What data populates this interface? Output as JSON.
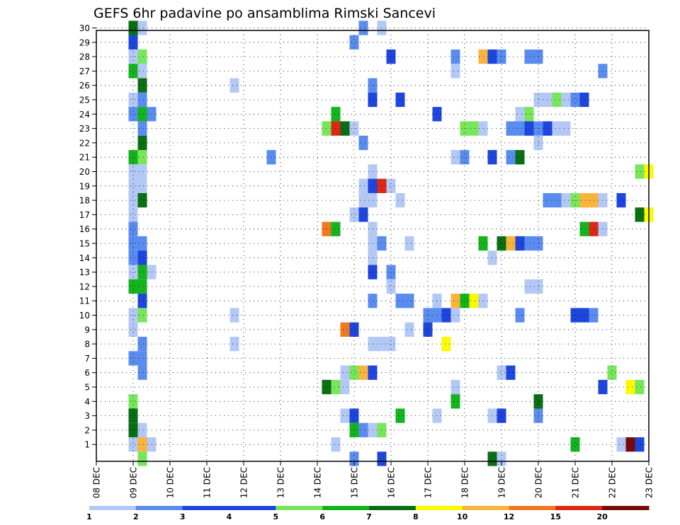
{
  "chart_data": {
    "type": "heatmap",
    "title": "GEFS 6hr padavine po ansamblima Rimski Sancevi",
    "x_ticks": [
      "08 DEC",
      "09 DEC",
      "10 DEC",
      "11 DEC",
      "12 DEC",
      "13 DEC",
      "14 DEC",
      "15 DEC",
      "16 DEC",
      "17 DEC",
      "18 DEC",
      "19 DEC",
      "20 DEC",
      "21 DEC",
      "22 DEC",
      "23 DEC"
    ],
    "y_ticks": [
      "1",
      "2",
      "3",
      "4",
      "5",
      "6",
      "7",
      "8",
      "9",
      "10",
      "11",
      "12",
      "13",
      "14",
      "15",
      "16",
      "17",
      "18",
      "19",
      "20",
      "21",
      "22",
      "23",
      "24",
      "25",
      "26",
      "27",
      "28",
      "29",
      "30"
    ],
    "x_range": [
      "08 DEC 00Z",
      "23 DEC 00Z"
    ],
    "time_step_hours": 6,
    "y_range": [
      0,
      30
    ],
    "grid": true,
    "legend": {
      "position": "bottom",
      "labels": [
        "1",
        "2",
        "3",
        "4",
        "5",
        "6",
        "7",
        "8",
        "10",
        "12",
        "15",
        "20"
      ],
      "colors": [
        "#b4c8f5",
        "#5a8cf0",
        "#1e46dc",
        "#1e46dc",
        "#78e65a",
        "#14b41e",
        "#0a6e14",
        "#fafa00",
        "#fab43c",
        "#f0781e",
        "#dc2814",
        "#780a0a"
      ],
      "category_colors": {
        "1": "#b4c8f5",
        "2": "#5a8cf0",
        "3": "#1e46dc",
        "5": "#78e65a",
        "6": "#14b41e",
        "7": "#0a6e14",
        "8": "#fafa00",
        "10": "#fab43c",
        "12": "#f0781e",
        "15": "#dc2814",
        "20": "#780a0a"
      }
    },
    "cells": [
      [
        "09 DEC 00Z",
        30,
        "7"
      ],
      [
        "09 DEC 06Z",
        30,
        "1"
      ],
      [
        "15 DEC 18Z",
        30,
        "1"
      ],
      [
        "15 DEC 06Z",
        30,
        "2"
      ],
      [
        "09 DEC 00Z",
        29,
        "3"
      ],
      [
        "15 DEC 00Z",
        29,
        "2"
      ],
      [
        "09 DEC 00Z",
        28,
        "1"
      ],
      [
        "09 DEC 06Z",
        28,
        "5"
      ],
      [
        "16 DEC 00Z",
        28,
        "3"
      ],
      [
        "17 DEC 18Z",
        28,
        "2"
      ],
      [
        "18 DEC 12Z",
        28,
        "10"
      ],
      [
        "18 DEC 18Z",
        28,
        "3"
      ],
      [
        "19 DEC 00Z",
        28,
        "2"
      ],
      [
        "19 DEC 18Z",
        28,
        "2"
      ],
      [
        "20 DEC 00Z",
        28,
        "2"
      ],
      [
        "09 DEC 00Z",
        27,
        "6"
      ],
      [
        "09 DEC 06Z",
        27,
        "1"
      ],
      [
        "17 DEC 18Z",
        27,
        "1"
      ],
      [
        "21 DEC 18Z",
        27,
        "2"
      ],
      [
        "09 DEC 06Z",
        26,
        "7"
      ],
      [
        "11 DEC 18Z",
        26,
        "1"
      ],
      [
        "15 DEC 12Z",
        26,
        "2"
      ],
      [
        "09 DEC 00Z",
        25,
        "1"
      ],
      [
        "09 DEC 06Z",
        25,
        "2"
      ],
      [
        "15 DEC 12Z",
        25,
        "3"
      ],
      [
        "16 DEC 06Z",
        25,
        "3"
      ],
      [
        "20 DEC 00Z",
        25,
        "1"
      ],
      [
        "20 DEC 06Z",
        25,
        "1"
      ],
      [
        "20 DEC 12Z",
        25,
        "5"
      ],
      [
        "20 DEC 18Z",
        25,
        "1"
      ],
      [
        "21 DEC 00Z",
        25,
        "2"
      ],
      [
        "21 DEC 06Z",
        25,
        "3"
      ],
      [
        "09 DEC 00Z",
        24,
        "2"
      ],
      [
        "09 DEC 06Z",
        24,
        "6"
      ],
      [
        "09 DEC 12Z",
        24,
        "2"
      ],
      [
        "14 DEC 12Z",
        24,
        "6"
      ],
      [
        "17 DEC 06Z",
        24,
        "3"
      ],
      [
        "19 DEC 12Z",
        24,
        "1"
      ],
      [
        "19 DEC 18Z",
        24,
        "5"
      ],
      [
        "09 DEC 06Z",
        23,
        "2"
      ],
      [
        "14 DEC 06Z",
        23,
        "5"
      ],
      [
        "14 DEC 12Z",
        23,
        "15"
      ],
      [
        "14 DEC 18Z",
        23,
        "7"
      ],
      [
        "15 DEC 00Z",
        23,
        "1"
      ],
      [
        "18 DEC 00Z",
        23,
        "5"
      ],
      [
        "18 DEC 06Z",
        23,
        "5"
      ],
      [
        "18 DEC 12Z",
        23,
        "1"
      ],
      [
        "19 DEC 06Z",
        23,
        "2"
      ],
      [
        "19 DEC 12Z",
        23,
        "2"
      ],
      [
        "19 DEC 18Z",
        23,
        "3"
      ],
      [
        "20 DEC 00Z",
        23,
        "2"
      ],
      [
        "20 DEC 06Z",
        23,
        "3"
      ],
      [
        "20 DEC 12Z",
        23,
        "1"
      ],
      [
        "20 DEC 18Z",
        23,
        "1"
      ],
      [
        "09 DEC 06Z",
        22,
        "7"
      ],
      [
        "15 DEC 06Z",
        22,
        "2"
      ],
      [
        "20 DEC 00Z",
        22,
        "1"
      ],
      [
        "09 DEC 00Z",
        21,
        "6"
      ],
      [
        "09 DEC 06Z",
        21,
        "5"
      ],
      [
        "12 DEC 18Z",
        21,
        "2"
      ],
      [
        "17 DEC 18Z",
        21,
        "1"
      ],
      [
        "18 DEC 00Z",
        21,
        "2"
      ],
      [
        "18 DEC 18Z",
        21,
        "3"
      ],
      [
        "19 DEC 06Z",
        21,
        "2"
      ],
      [
        "19 DEC 12Z",
        21,
        "7"
      ],
      [
        "09 DEC 00Z",
        20,
        "1"
      ],
      [
        "09 DEC 06Z",
        20,
        "1"
      ],
      [
        "15 DEC 12Z",
        20,
        "1"
      ],
      [
        "22 DEC 18Z",
        20,
        "5"
      ],
      [
        "23 DEC 00Z",
        20,
        "8"
      ],
      [
        "09 DEC 00Z",
        19,
        "1"
      ],
      [
        "09 DEC 06Z",
        19,
        "1"
      ],
      [
        "15 DEC 06Z",
        19,
        "1"
      ],
      [
        "15 DEC 12Z",
        19,
        "3"
      ],
      [
        "15 DEC 18Z",
        19,
        "15"
      ],
      [
        "16 DEC 00Z",
        19,
        "1"
      ],
      [
        "09 DEC 00Z",
        18,
        "1"
      ],
      [
        "09 DEC 06Z",
        18,
        "7"
      ],
      [
        "15 DEC 06Z",
        18,
        "1"
      ],
      [
        "15 DEC 12Z",
        18,
        "1"
      ],
      [
        "16 DEC 06Z",
        18,
        "1"
      ],
      [
        "20 DEC 06Z",
        18,
        "2"
      ],
      [
        "20 DEC 12Z",
        18,
        "2"
      ],
      [
        "20 DEC 18Z",
        18,
        "1"
      ],
      [
        "21 DEC 00Z",
        18,
        "5"
      ],
      [
        "21 DEC 06Z",
        18,
        "10"
      ],
      [
        "21 DEC 12Z",
        18,
        "10"
      ],
      [
        "21 DEC 18Z",
        18,
        "1"
      ],
      [
        "22 DEC 06Z",
        18,
        "3"
      ],
      [
        "09 DEC 00Z",
        17,
        "1"
      ],
      [
        "15 DEC 00Z",
        17,
        "1"
      ],
      [
        "15 DEC 06Z",
        17,
        "3"
      ],
      [
        "22 DEC 18Z",
        17,
        "7"
      ],
      [
        "23 DEC 00Z",
        17,
        "8"
      ],
      [
        "09 DEC 00Z",
        16,
        "2"
      ],
      [
        "14 DEC 06Z",
        16,
        "12"
      ],
      [
        "14 DEC 12Z",
        16,
        "6"
      ],
      [
        "15 DEC 12Z",
        16,
        "1"
      ],
      [
        "21 DEC 06Z",
        16,
        "6"
      ],
      [
        "21 DEC 12Z",
        16,
        "15"
      ],
      [
        "21 DEC 18Z",
        16,
        "1"
      ],
      [
        "09 DEC 00Z",
        15,
        "2"
      ],
      [
        "09 DEC 06Z",
        15,
        "2"
      ],
      [
        "15 DEC 12Z",
        15,
        "1"
      ],
      [
        "15 DEC 18Z",
        15,
        "2"
      ],
      [
        "16 DEC 12Z",
        15,
        "1"
      ],
      [
        "18 DEC 12Z",
        15,
        "6"
      ],
      [
        "19 DEC 00Z",
        15,
        "7"
      ],
      [
        "19 DEC 06Z",
        15,
        "10"
      ],
      [
        "19 DEC 12Z",
        15,
        "3"
      ],
      [
        "19 DEC 18Z",
        15,
        "2"
      ],
      [
        "20 DEC 00Z",
        15,
        "2"
      ],
      [
        "09 DEC 00Z",
        14,
        "2"
      ],
      [
        "09 DEC 06Z",
        14,
        "3"
      ],
      [
        "15 DEC 12Z",
        14,
        "1"
      ],
      [
        "18 DEC 18Z",
        14,
        "1"
      ],
      [
        "09 DEC 00Z",
        13,
        "1"
      ],
      [
        "09 DEC 06Z",
        13,
        "6"
      ],
      [
        "09 DEC 12Z",
        13,
        "1"
      ],
      [
        "15 DEC 12Z",
        13,
        "3"
      ],
      [
        "16 DEC 00Z",
        13,
        "2"
      ],
      [
        "09 DEC 00Z",
        12,
        "6"
      ],
      [
        "09 DEC 06Z",
        12,
        "6"
      ],
      [
        "16 DEC 00Z",
        12,
        "1"
      ],
      [
        "19 DEC 18Z",
        12,
        "1"
      ],
      [
        "20 DEC 00Z",
        12,
        "1"
      ],
      [
        "09 DEC 06Z",
        11,
        "3"
      ],
      [
        "15 DEC 12Z",
        11,
        "2"
      ],
      [
        "16 DEC 06Z",
        11,
        "2"
      ],
      [
        "16 DEC 12Z",
        11,
        "2"
      ],
      [
        "17 DEC 06Z",
        11,
        "1"
      ],
      [
        "17 DEC 18Z",
        11,
        "10"
      ],
      [
        "18 DEC 00Z",
        11,
        "6"
      ],
      [
        "18 DEC 06Z",
        11,
        "8"
      ],
      [
        "18 DEC 12Z",
        11,
        "1"
      ],
      [
        "09 DEC 00Z",
        10,
        "1"
      ],
      [
        "09 DEC 06Z",
        10,
        "5"
      ],
      [
        "11 DEC 18Z",
        10,
        "1"
      ],
      [
        "17 DEC 00Z",
        10,
        "2"
      ],
      [
        "17 DEC 06Z",
        10,
        "2"
      ],
      [
        "17 DEC 12Z",
        10,
        "3"
      ],
      [
        "17 DEC 18Z",
        10,
        "1"
      ],
      [
        "19 DEC 12Z",
        10,
        "2"
      ],
      [
        "21 DEC 00Z",
        10,
        "3"
      ],
      [
        "21 DEC 06Z",
        10,
        "3"
      ],
      [
        "21 DEC 12Z",
        10,
        "2"
      ],
      [
        "09 DEC 00Z",
        9,
        "1"
      ],
      [
        "14 DEC 18Z",
        9,
        "12"
      ],
      [
        "15 DEC 00Z",
        9,
        "3"
      ],
      [
        "16 DEC 12Z",
        9,
        "1"
      ],
      [
        "17 DEC 00Z",
        9,
        "3"
      ],
      [
        "09 DEC 06Z",
        8,
        "2"
      ],
      [
        "11 DEC 18Z",
        8,
        "1"
      ],
      [
        "15 DEC 12Z",
        8,
        "1"
      ],
      [
        "15 DEC 18Z",
        8,
        "1"
      ],
      [
        "16 DEC 00Z",
        8,
        "1"
      ],
      [
        "17 DEC 12Z",
        8,
        "8"
      ],
      [
        "09 DEC 00Z",
        7,
        "2"
      ],
      [
        "09 DEC 06Z",
        7,
        "2"
      ],
      [
        "09 DEC 06Z",
        6,
        "2"
      ],
      [
        "14 DEC 18Z",
        6,
        "1"
      ],
      [
        "15 DEC 00Z",
        6,
        "5"
      ],
      [
        "15 DEC 06Z",
        6,
        "10"
      ],
      [
        "15 DEC 12Z",
        6,
        "3"
      ],
      [
        "19 DEC 00Z",
        6,
        "1"
      ],
      [
        "19 DEC 06Z",
        6,
        "3"
      ],
      [
        "22 DEC 00Z",
        6,
        "5"
      ],
      [
        "14 DEC 06Z",
        5,
        "7"
      ],
      [
        "14 DEC 12Z",
        5,
        "5"
      ],
      [
        "14 DEC 18Z",
        5,
        "1"
      ],
      [
        "17 DEC 18Z",
        5,
        "1"
      ],
      [
        "21 DEC 18Z",
        5,
        "3"
      ],
      [
        "22 DEC 12Z",
        5,
        "8"
      ],
      [
        "22 DEC 18Z",
        5,
        "5"
      ],
      [
        "09 DEC 00Z",
        4,
        "5"
      ],
      [
        "17 DEC 18Z",
        4,
        "6"
      ],
      [
        "20 DEC 00Z",
        4,
        "7"
      ],
      [
        "09 DEC 00Z",
        3,
        "7"
      ],
      [
        "14 DEC 18Z",
        3,
        "1"
      ],
      [
        "15 DEC 00Z",
        3,
        "3"
      ],
      [
        "16 DEC 06Z",
        3,
        "6"
      ],
      [
        "17 DEC 06Z",
        3,
        "1"
      ],
      [
        "18 DEC 18Z",
        3,
        "1"
      ],
      [
        "19 DEC 00Z",
        3,
        "3"
      ],
      [
        "20 DEC 00Z",
        3,
        "2"
      ],
      [
        "09 DEC 00Z",
        2,
        "7"
      ],
      [
        "09 DEC 06Z",
        2,
        "1"
      ],
      [
        "15 DEC 00Z",
        2,
        "6"
      ],
      [
        "15 DEC 06Z",
        2,
        "2"
      ],
      [
        "15 DEC 12Z",
        2,
        "1"
      ],
      [
        "15 DEC 18Z",
        2,
        "5"
      ],
      [
        "09 DEC 00Z",
        1,
        "1"
      ],
      [
        "09 DEC 06Z",
        1,
        "10"
      ],
      [
        "09 DEC 12Z",
        1,
        "1"
      ],
      [
        "14 DEC 12Z",
        1,
        "1"
      ],
      [
        "21 DEC 00Z",
        1,
        "6"
      ],
      [
        "22 DEC 06Z",
        1,
        "1"
      ],
      [
        "22 DEC 12Z",
        1,
        "20"
      ],
      [
        "22 DEC 18Z",
        1,
        "3"
      ],
      [
        "09 DEC 06Z",
        0,
        "5"
      ],
      [
        "15 DEC 00Z",
        0,
        "2"
      ],
      [
        "15 DEC 18Z",
        0,
        "3"
      ],
      [
        "18 DEC 18Z",
        0,
        "7"
      ],
      [
        "19 DEC 00Z",
        0,
        "1"
      ]
    ]
  }
}
